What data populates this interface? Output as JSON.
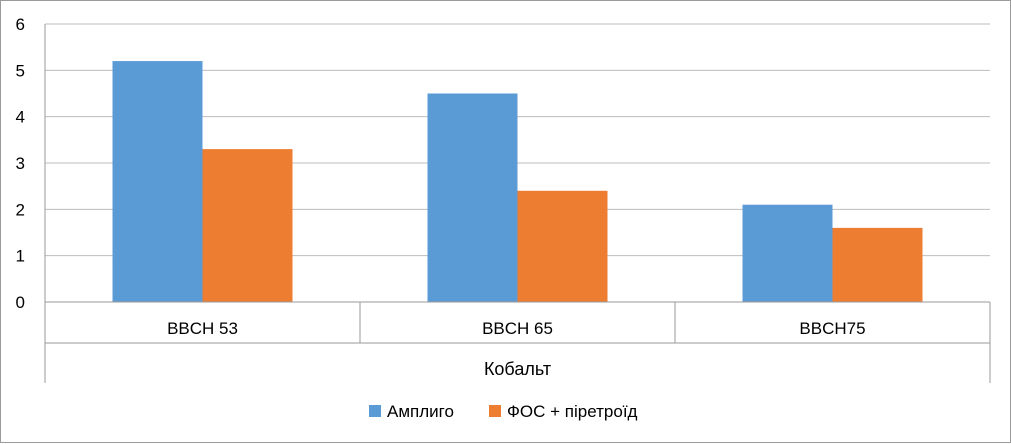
{
  "chart_data": {
    "type": "bar",
    "categories": [
      "BBCH 53",
      "BBCH 65",
      "BBCH75"
    ],
    "group_label": "Кобальт",
    "series": [
      {
        "name": "Амплиго",
        "values": [
          5.2,
          4.5,
          2.1
        ],
        "color": "#5b9bd5"
      },
      {
        "name": "ФОС + піретроїд",
        "values": [
          3.3,
          2.4,
          1.6
        ],
        "color": "#ed7d31"
      }
    ],
    "y_ticks": [
      "0",
      "1",
      "2",
      "3",
      "4",
      "5",
      "6"
    ],
    "ylim": [
      0,
      6
    ],
    "grid": true,
    "legend_position": "bottom",
    "title": "",
    "xlabel": "",
    "ylabel": ""
  }
}
